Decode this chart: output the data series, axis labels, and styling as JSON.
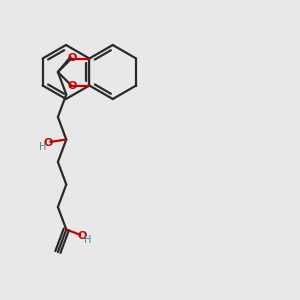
{
  "bg_color": "#e8e8e8",
  "bond_color": "#2a2a2a",
  "oxygen_color": "#cc0000",
  "oh_color": "#3a9090",
  "line_width": 1.6,
  "figsize": [
    3.0,
    3.0
  ],
  "dpi": 100,
  "xlim": [
    0,
    10
  ],
  "ylim": [
    0,
    10
  ]
}
